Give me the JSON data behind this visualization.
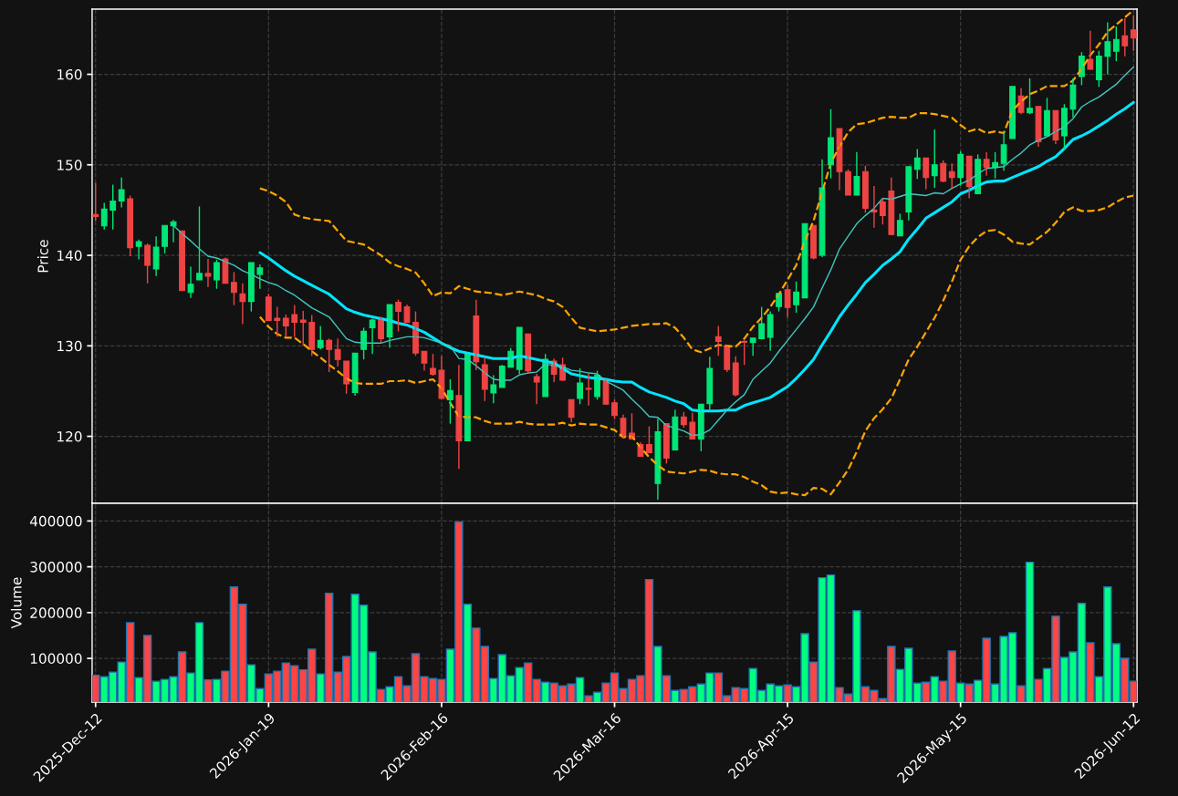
{
  "chart_data": [
    {
      "type": "candlestick",
      "ylabel": "Price",
      "grid": true,
      "tick_labels": "y",
      "ylim": [
        112.6,
        167.2
      ],
      "yticks": [
        120,
        130,
        140,
        150,
        160
      ],
      "categories": [
        null,
        null,
        null,
        null,
        null,
        null,
        null,
        null,
        null,
        null,
        null,
        null,
        null,
        null,
        null,
        null,
        null,
        null,
        null,
        null,
        null,
        null,
        null,
        null,
        null,
        null,
        null,
        null,
        null,
        null,
        null,
        null,
        null,
        null,
        null,
        null,
        null,
        null,
        null,
        null,
        null,
        null,
        null,
        null,
        null,
        null,
        null,
        null,
        null,
        null,
        null,
        null,
        null,
        null,
        null,
        null,
        null,
        null,
        null,
        null,
        null,
        null,
        null,
        null,
        null,
        null,
        null,
        null,
        null,
        null,
        null,
        null,
        null,
        null,
        null,
        null,
        null,
        null,
        null,
        null,
        null,
        null,
        null,
        null,
        null,
        null,
        null,
        null,
        null,
        null,
        null,
        null,
        null,
        null,
        null,
        null,
        null,
        null,
        null,
        null,
        null,
        null,
        null,
        null,
        null,
        null,
        null,
        null,
        null,
        null,
        null,
        null,
        null,
        null,
        null,
        null,
        null,
        null,
        null,
        null,
        null
      ],
      "ohlc": [
        [
          144.5,
          148.0,
          143.8,
          144.3
        ],
        [
          143.25,
          145.8,
          142.85,
          145.1
        ],
        [
          145.0,
          147.8,
          142.85,
          146.0
        ],
        [
          146.0,
          148.6,
          145.3,
          147.25
        ],
        [
          146.25,
          146.6,
          139.9,
          140.85
        ],
        [
          141.0,
          141.75,
          139.55,
          141.5
        ],
        [
          141.1,
          141.3,
          136.9,
          138.9
        ],
        [
          138.5,
          142.1,
          137.7,
          140.9
        ],
        [
          141.0,
          143.3,
          140.2,
          143.3
        ],
        [
          143.25,
          143.9,
          141.45,
          143.7
        ],
        [
          142.7,
          142.7,
          136.1,
          136.1
        ],
        [
          135.9,
          138.75,
          135.3,
          136.8
        ],
        [
          137.3,
          145.4,
          137.3,
          138.0
        ],
        [
          138.0,
          139.6,
          136.5,
          137.7
        ],
        [
          137.3,
          139.5,
          136.3,
          139.2
        ],
        [
          139.6,
          139.75,
          136.9,
          136.9
        ],
        [
          137.0,
          138.15,
          134.5,
          135.9
        ],
        [
          135.75,
          136.9,
          132.4,
          134.9
        ],
        [
          134.9,
          139.2,
          133.8,
          139.2
        ],
        [
          137.9,
          139.0,
          136.3,
          138.6
        ],
        [
          135.4,
          135.75,
          132.8,
          132.8
        ],
        [
          133.05,
          134.3,
          131.0,
          132.8
        ],
        [
          133.05,
          133.45,
          131.0,
          132.2
        ],
        [
          133.45,
          134.5,
          130.95,
          132.6
        ],
        [
          132.85,
          133.85,
          130.0,
          132.6
        ],
        [
          132.6,
          133.4,
          128.9,
          129.6
        ],
        [
          129.8,
          132.2,
          129.6,
          130.6
        ],
        [
          130.6,
          130.8,
          127.1,
          129.6
        ],
        [
          129.6,
          130.8,
          127.7,
          128.5
        ],
        [
          128.3,
          128.3,
          124.7,
          125.8
        ],
        [
          124.85,
          129.2,
          124.5,
          129.2
        ],
        [
          129.6,
          132.0,
          128.5,
          131.6
        ],
        [
          132.0,
          133.0,
          129.1,
          132.85
        ],
        [
          133.0,
          133.2,
          130.3,
          130.8
        ],
        [
          131.0,
          134.55,
          129.8,
          134.55
        ],
        [
          134.8,
          135.1,
          131.6,
          133.8
        ],
        [
          134.3,
          134.55,
          132.6,
          132.6
        ],
        [
          132.6,
          133.8,
          128.9,
          129.2
        ],
        [
          129.4,
          129.4,
          127.25,
          128.1
        ],
        [
          127.5,
          129.1,
          126.7,
          126.85
        ],
        [
          127.3,
          128.9,
          124.1,
          124.2
        ],
        [
          124.05,
          126.3,
          121.4,
          125.05
        ],
        [
          124.5,
          127.9,
          116.4,
          119.5
        ],
        [
          119.5,
          129.1,
          119.5,
          129.1
        ],
        [
          133.3,
          135.1,
          127.3,
          128.25
        ],
        [
          127.9,
          128.75,
          123.9,
          125.2
        ],
        [
          124.8,
          126.75,
          123.65,
          125.7
        ],
        [
          125.4,
          127.9,
          125.4,
          127.75
        ],
        [
          127.65,
          129.75,
          127.65,
          129.4
        ],
        [
          127.4,
          132.05,
          126.9,
          132.05
        ],
        [
          131.3,
          131.3,
          127.0,
          127.25
        ],
        [
          126.6,
          126.9,
          123.55,
          126.0
        ],
        [
          124.4,
          129.1,
          124.4,
          128.5
        ],
        [
          128.3,
          128.6,
          126.0,
          126.85
        ],
        [
          127.9,
          128.7,
          126.15,
          126.2
        ],
        [
          124.05,
          124.05,
          121.55,
          122.1
        ],
        [
          124.2,
          127.5,
          123.55,
          125.9
        ],
        [
          125.3,
          127.0,
          123.4,
          125.2
        ],
        [
          124.4,
          127.25,
          124.05,
          126.75
        ],
        [
          126.15,
          126.3,
          123.55,
          123.55
        ],
        [
          123.7,
          124.05,
          121.9,
          122.3
        ],
        [
          122.0,
          122.4,
          119.85,
          120.0
        ],
        [
          120.35,
          122.55,
          119.7,
          119.7
        ],
        [
          119.1,
          119.35,
          117.8,
          117.8
        ],
        [
          119.1,
          121.1,
          118.1,
          118.2
        ],
        [
          114.8,
          121.95,
          113.0,
          120.5
        ],
        [
          121.4,
          121.4,
          117.0,
          117.6
        ],
        [
          118.5,
          122.95,
          118.5,
          122.15
        ],
        [
          122.15,
          122.7,
          120.95,
          121.3
        ],
        [
          121.55,
          122.6,
          119.7,
          119.7
        ],
        [
          119.7,
          123.55,
          118.35,
          123.55
        ],
        [
          123.6,
          128.8,
          122.95,
          127.5
        ],
        [
          131.0,
          132.2,
          128.9,
          130.5
        ],
        [
          130.0,
          130.0,
          127.1,
          127.4
        ],
        [
          128.1,
          128.85,
          124.4,
          124.6
        ],
        [
          130.5,
          130.6,
          127.9,
          130.4
        ],
        [
          130.35,
          130.85,
          128.9,
          130.85
        ],
        [
          130.8,
          134.3,
          130.8,
          132.45
        ],
        [
          130.95,
          133.8,
          129.45,
          133.45
        ],
        [
          134.35,
          135.8,
          133.8,
          135.8
        ],
        [
          136.2,
          136.75,
          133.1,
          134.25
        ],
        [
          134.55,
          137.1,
          133.65,
          135.95
        ],
        [
          135.3,
          143.5,
          135.3,
          143.5
        ],
        [
          143.3,
          143.3,
          139.55,
          139.7
        ],
        [
          140.0,
          150.6,
          139.8,
          147.45
        ],
        [
          150.0,
          156.15,
          148.5,
          153.0
        ],
        [
          154.0,
          154.0,
          147.2,
          149.25
        ],
        [
          149.25,
          149.5,
          146.65,
          146.65
        ],
        [
          146.65,
          151.4,
          146.65,
          148.7
        ],
        [
          149.25,
          149.9,
          144.7,
          145.2
        ],
        [
          145.0,
          147.65,
          143.05,
          144.8
        ],
        [
          145.9,
          146.3,
          143.4,
          144.4
        ],
        [
          147.1,
          148.6,
          142.25,
          142.3
        ],
        [
          142.15,
          144.6,
          142.15,
          143.85
        ],
        [
          144.8,
          149.8,
          143.85,
          149.8
        ],
        [
          149.5,
          151.75,
          148.45,
          150.75
        ],
        [
          150.75,
          150.75,
          147.3,
          148.6
        ],
        [
          148.8,
          153.9,
          147.45,
          150.0
        ],
        [
          150.15,
          150.5,
          148.1,
          148.2
        ],
        [
          149.25,
          150.15,
          147.3,
          148.6
        ],
        [
          148.6,
          151.5,
          147.7,
          151.15
        ],
        [
          150.95,
          150.95,
          146.3,
          147.6
        ],
        [
          146.8,
          151.15,
          146.8,
          150.6
        ],
        [
          150.6,
          151.4,
          148.8,
          149.7
        ],
        [
          149.7,
          151.4,
          148.5,
          150.25
        ],
        [
          150.15,
          153.65,
          149.35,
          152.2
        ],
        [
          152.9,
          158.65,
          152.9,
          158.65
        ],
        [
          157.6,
          158.5,
          155.6,
          155.8
        ],
        [
          155.75,
          159.55,
          155.6,
          156.25
        ],
        [
          156.45,
          156.45,
          152.0,
          152.55
        ],
        [
          153.2,
          157.4,
          153.2,
          156.0
        ],
        [
          156.0,
          156.0,
          152.3,
          152.75
        ],
        [
          153.2,
          156.7,
          151.65,
          156.25
        ],
        [
          156.15,
          159.55,
          155.25,
          158.8
        ],
        [
          159.75,
          162.45,
          158.8,
          162.0
        ],
        [
          161.65,
          164.8,
          160.55,
          160.55
        ],
        [
          159.4,
          162.6,
          158.6,
          162.0
        ],
        [
          162.0,
          165.75,
          160.0,
          163.6
        ],
        [
          162.55,
          165.3,
          161.45,
          163.85
        ],
        [
          164.25,
          166.2,
          162.0,
          163.15
        ],
        [
          164.9,
          166.55,
          162.6,
          164.0
        ]
      ],
      "colors": [
        "#ef4444",
        "#00e676",
        "#00e676",
        "#00e676",
        "#ef4444",
        "#00e676",
        "#ef4444",
        "#00e676",
        "#00e676",
        "#00e676",
        "#ef4444",
        "#00e676",
        "#00e676",
        "#ef4444",
        "#00e676",
        "#ef4444",
        "#ef4444",
        "#ef4444",
        "#00e676",
        "#00e676",
        "#ef4444",
        "#ef4444",
        "#ef4444",
        "#ef4444",
        "#ef4444",
        "#ef4444",
        "#00e676",
        "#ef4444",
        "#ef4444",
        "#ef4444",
        "#00e676",
        "#00e676",
        "#00e676",
        "#ef4444",
        "#00e676",
        "#ef4444",
        "#ef4444",
        "#ef4444",
        "#ef4444",
        "#ef4444",
        "#ef4444",
        "#00e676",
        "#ef4444",
        "#00e676",
        "#ef4444",
        "#ef4444",
        "#00e676",
        "#00e676",
        "#00e676",
        "#00e676",
        "#ef4444",
        "#ef4444",
        "#00e676",
        "#ef4444",
        "#ef4444",
        "#ef4444",
        "#00e676",
        "#ef4444",
        "#00e676",
        "#ef4444",
        "#ef4444",
        "#ef4444",
        "#ef4444",
        "#ef4444",
        "#ef4444",
        "#00e676",
        "#ef4444",
        "#00e676",
        "#ef4444",
        "#ef4444",
        "#00e676",
        "#00e676",
        "#ef4444",
        "#ef4444",
        "#ef4444",
        "#ef4444",
        "#00e676",
        "#00e676",
        "#00e676",
        "#00e676",
        "#ef4444",
        "#00e676",
        "#00e676",
        "#ef4444",
        "#00e676",
        "#00e676",
        "#ef4444",
        "#ef4444",
        "#00e676",
        "#ef4444",
        "#ef4444",
        "#ef4444",
        "#ef4444",
        "#00e676",
        "#00e676",
        "#00e676",
        "#ef4444",
        "#00e676",
        "#ef4444",
        "#ef4444",
        "#00e676",
        "#ef4444",
        "#00e676",
        "#ef4444",
        "#00e676",
        "#00e676",
        "#00e676",
        "#ef4444",
        "#00e676",
        "#ef4444",
        "#00e676",
        "#ef4444",
        "#00e676",
        "#00e676",
        "#00e676",
        "#ef4444",
        "#00e676",
        "#00e676",
        "#00e676",
        "#ef4444",
        "#ef4444"
      ],
      "series": [
        {
          "type": "line",
          "color": "#00e5ff",
          "line_style": "solid",
          "values": [
            null,
            null,
            null,
            null,
            null,
            null,
            null,
            null,
            null,
            null,
            null,
            null,
            null,
            null,
            null,
            null,
            null,
            null,
            null,
            140.3,
            139.7,
            139.0,
            138.3,
            137.7,
            137.2,
            136.7,
            136.2,
            135.7,
            134.9,
            134.1,
            133.7,
            133.4,
            133.2,
            133.0,
            132.8,
            132.5,
            132.3,
            131.9,
            131.5,
            130.9,
            130.3,
            129.8,
            129.4,
            129.2,
            129.0,
            128.8,
            128.6,
            128.6,
            128.6,
            128.9,
            128.7,
            128.5,
            128.3,
            128.1,
            127.5,
            126.9,
            126.7,
            126.5,
            126.4,
            126.3,
            126.1,
            126.0,
            126.0,
            125.4,
            124.9,
            124.6,
            124.3,
            123.9,
            123.6,
            122.9,
            122.8,
            122.8,
            122.8,
            122.9,
            122.9,
            123.4,
            123.7,
            124.0,
            124.3,
            124.9,
            125.5,
            126.4,
            127.4,
            128.5,
            130.1,
            131.6,
            133.2,
            134.5,
            135.7,
            137.0,
            137.9,
            138.9,
            139.6,
            140.4,
            141.8,
            142.9,
            144.1,
            144.7,
            145.3,
            145.9,
            146.8,
            147.2,
            147.7,
            148.1,
            148.2,
            148.2,
            148.6,
            149.0,
            149.4,
            149.8,
            150.4,
            150.9,
            151.8,
            152.8,
            153.2,
            153.7,
            154.3,
            154.9,
            155.6,
            156.2,
            156.9
          ]
        },
        {
          "type": "line",
          "color": "#40c8c0",
          "line_style": "solid",
          "values": [
            null,
            null,
            null,
            null,
            null,
            null,
            null,
            null,
            null,
            143.3,
            142.4,
            141.6,
            140.7,
            139.9,
            139.7,
            139.3,
            138.9,
            138.3,
            137.9,
            137.4,
            137.0,
            136.7,
            136.1,
            135.6,
            134.9,
            134.2,
            133.7,
            133.2,
            132.0,
            130.8,
            130.4,
            130.3,
            130.3,
            130.3,
            130.6,
            130.8,
            131.0,
            131.0,
            130.9,
            130.6,
            130.3,
            130.0,
            128.6,
            128.5,
            127.8,
            127.0,
            126.3,
            126.2,
            126.2,
            126.8,
            127.0,
            127.1,
            128.0,
            127.8,
            127.7,
            127.3,
            127.2,
            127.0,
            126.9,
            126.1,
            125.6,
            125.1,
            124.1,
            123.2,
            122.2,
            122.1,
            121.2,
            120.9,
            120.6,
            120.1,
            120.2,
            120.7,
            121.8,
            122.9,
            123.8,
            124.6,
            126.3,
            127.2,
            128.1,
            129.4,
            130.6,
            131.8,
            133.0,
            134.3,
            136.4,
            138.4,
            140.7,
            142.1,
            143.5,
            144.4,
            145.2,
            146.3,
            146.2,
            146.5,
            146.8,
            146.7,
            146.6,
            146.9,
            146.8,
            147.4,
            147.9,
            148.3,
            149.0,
            149.6,
            149.7,
            149.8,
            150.6,
            151.3,
            152.2,
            152.7,
            153.1,
            153.7,
            154.2,
            155.1,
            156.4,
            157.0,
            157.5,
            158.2,
            158.9,
            159.9,
            160.8
          ]
        },
        {
          "type": "line",
          "color": "#ffa500",
          "line_style": "dashed",
          "values": [
            null,
            null,
            null,
            null,
            null,
            null,
            null,
            null,
            null,
            null,
            null,
            null,
            null,
            null,
            null,
            null,
            null,
            null,
            null,
            147.4,
            147.1,
            146.6,
            145.9,
            144.5,
            144.2,
            144.0,
            143.9,
            143.8,
            142.7,
            141.6,
            141.4,
            141.2,
            140.6,
            140.0,
            139.2,
            138.8,
            138.5,
            138.1,
            136.9,
            135.5,
            135.9,
            135.8,
            136.6,
            136.3,
            136.0,
            135.9,
            135.8,
            135.6,
            135.8,
            136.0,
            135.8,
            135.6,
            135.2,
            134.9,
            134.3,
            133.1,
            132.0,
            131.8,
            131.6,
            131.7,
            131.8,
            132.0,
            132.2,
            132.3,
            132.4,
            132.4,
            132.5,
            132.0,
            130.9,
            129.6,
            129.3,
            129.7,
            130.1,
            130.0,
            129.9,
            130.8,
            132.1,
            133.1,
            134.3,
            135.7,
            137.3,
            138.9,
            141.6,
            143.8,
            147.0,
            150.2,
            152.0,
            153.6,
            154.5,
            154.6,
            154.9,
            155.2,
            155.3,
            155.2,
            155.2,
            155.7,
            155.7,
            155.6,
            155.4,
            155.2,
            154.4,
            153.7,
            154.0,
            153.5,
            153.7,
            153.5,
            156.0,
            157.0,
            157.8,
            158.2,
            158.7,
            158.7,
            158.7,
            159.3,
            160.6,
            162.1,
            163.3,
            164.7,
            165.5,
            166.3,
            167.1
          ]
        },
        {
          "type": "line",
          "color": "#ffa500",
          "line_style": "dashed",
          "values": [
            null,
            null,
            null,
            null,
            null,
            null,
            null,
            null,
            null,
            null,
            null,
            null,
            null,
            null,
            null,
            null,
            null,
            null,
            null,
            133.2,
            132.1,
            131.3,
            130.9,
            130.9,
            130.2,
            129.4,
            128.7,
            127.9,
            127.2,
            126.4,
            125.9,
            125.8,
            125.8,
            125.8,
            126.1,
            126.1,
            126.2,
            125.9,
            126.1,
            126.3,
            125.3,
            123.7,
            122.2,
            122.1,
            122.1,
            121.7,
            121.4,
            121.4,
            121.4,
            121.6,
            121.4,
            121.3,
            121.3,
            121.3,
            121.5,
            121.2,
            121.4,
            121.3,
            121.3,
            121.0,
            120.7,
            119.9,
            120.0,
            118.8,
            117.7,
            116.8,
            116.1,
            116.0,
            115.9,
            116.1,
            116.3,
            116.2,
            115.9,
            115.8,
            115.8,
            115.5,
            115.0,
            114.6,
            113.9,
            113.7,
            113.8,
            113.6,
            113.5,
            114.3,
            114.2,
            113.6,
            114.9,
            116.3,
            118.3,
            120.6,
            122.0,
            123.0,
            124.2,
            126.3,
            128.5,
            129.9,
            131.5,
            133.1,
            135.0,
            137.1,
            139.5,
            141.0,
            142.0,
            142.7,
            142.8,
            142.3,
            141.5,
            141.3,
            141.2,
            141.9,
            142.6,
            143.6,
            144.8,
            145.3,
            144.9,
            144.9,
            145.0,
            145.3,
            145.9,
            146.4,
            146.6
          ]
        }
      ]
    },
    {
      "type": "bar",
      "ylabel": "Volume",
      "grid": true,
      "ylim": [
        4600,
        438600
      ],
      "yticks": [
        100000,
        200000,
        300000,
        400000
      ],
      "categories": [
        "2025-Dec-12",
        null,
        null,
        null,
        null,
        null,
        null,
        null,
        null,
        null,
        null,
        null,
        null,
        null,
        null,
        null,
        null,
        null,
        null,
        null,
        "2026-Jan-19",
        null,
        null,
        null,
        null,
        null,
        null,
        null,
        null,
        null,
        null,
        null,
        null,
        null,
        null,
        null,
        null,
        null,
        null,
        null,
        "2026-Feb-16",
        null,
        null,
        null,
        null,
        null,
        null,
        null,
        null,
        null,
        null,
        null,
        null,
        null,
        null,
        null,
        null,
        null,
        null,
        null,
        "2026-Mar-16",
        null,
        null,
        null,
        null,
        null,
        null,
        null,
        null,
        null,
        null,
        null,
        null,
        null,
        null,
        null,
        null,
        null,
        null,
        null,
        "2026-Apr-15",
        null,
        null,
        null,
        null,
        null,
        null,
        null,
        null,
        null,
        null,
        null,
        null,
        null,
        null,
        null,
        null,
        null,
        null,
        null,
        "2026-May-15",
        null,
        null,
        null,
        null,
        null,
        null,
        null,
        null,
        null,
        null,
        null,
        null,
        null,
        null,
        null,
        null,
        null,
        null,
        null,
        "2026-Jun-12"
      ],
      "values": [
        63000,
        60000,
        70000,
        92000,
        178000,
        58000,
        150000,
        50000,
        54000,
        60000,
        114000,
        68000,
        178000,
        53000,
        54000,
        72000,
        256000,
        218000,
        86000,
        34000,
        66000,
        72000,
        90000,
        84000,
        75000,
        120000,
        66000,
        242000,
        70000,
        104000,
        240000,
        216000,
        114000,
        32000,
        38000,
        60000,
        40000,
        110000,
        60000,
        56000,
        54000,
        120000,
        398000,
        218000,
        166000,
        126000,
        56000,
        108000,
        62000,
        80000,
        90000,
        54000,
        48000,
        46000,
        40000,
        44000,
        58000,
        18000,
        26000,
        46000,
        68000,
        34000,
        54000,
        62000,
        272000,
        126000,
        62000,
        30000,
        32000,
        38000,
        44000,
        68000,
        68000,
        18000,
        36000,
        34000,
        78000,
        30000,
        44000,
        40000,
        42000,
        38000,
        154000,
        92000,
        276000,
        282000,
        36000,
        22000,
        204000,
        38000,
        30000,
        12000,
        126000,
        76000,
        122000,
        46000,
        48000,
        60000,
        50000,
        116000,
        46000,
        44000,
        52000,
        144000,
        44000,
        148000,
        156000,
        40000,
        310000,
        54000,
        78000,
        192000,
        102000,
        114000,
        220000,
        134000,
        60000,
        256000,
        132000,
        100000,
        50000
      ],
      "colors": [
        "#ff4444",
        "#00ff7f",
        "#00ff7f",
        "#00ff7f",
        "#ff4444",
        "#00ff7f",
        "#ff4444",
        "#00ff7f",
        "#00ff7f",
        "#00ff7f",
        "#ff4444",
        "#00ff7f",
        "#00ff7f",
        "#ff4444",
        "#00ff7f",
        "#ff4444",
        "#ff4444",
        "#ff4444",
        "#00ff7f",
        "#00ff7f",
        "#ff4444",
        "#ff4444",
        "#ff4444",
        "#ff4444",
        "#ff4444",
        "#ff4444",
        "#00ff7f",
        "#ff4444",
        "#ff4444",
        "#ff4444",
        "#00ff7f",
        "#00ff7f",
        "#00ff7f",
        "#ff4444",
        "#00ff7f",
        "#ff4444",
        "#ff4444",
        "#ff4444",
        "#ff4444",
        "#ff4444",
        "#ff4444",
        "#00ff7f",
        "#ff4444",
        "#00ff7f",
        "#ff4444",
        "#ff4444",
        "#00ff7f",
        "#00ff7f",
        "#00ff7f",
        "#00ff7f",
        "#ff4444",
        "#ff4444",
        "#00ff7f",
        "#ff4444",
        "#ff4444",
        "#ff4444",
        "#00ff7f",
        "#ff4444",
        "#00ff7f",
        "#ff4444",
        "#ff4444",
        "#ff4444",
        "#ff4444",
        "#ff4444",
        "#ff4444",
        "#00ff7f",
        "#ff4444",
        "#00ff7f",
        "#ff4444",
        "#ff4444",
        "#00ff7f",
        "#00ff7f",
        "#ff4444",
        "#ff4444",
        "#ff4444",
        "#ff4444",
        "#00ff7f",
        "#00ff7f",
        "#00ff7f",
        "#00ff7f",
        "#ff4444",
        "#00ff7f",
        "#00ff7f",
        "#ff4444",
        "#00ff7f",
        "#00ff7f",
        "#ff4444",
        "#ff4444",
        "#00ff7f",
        "#ff4444",
        "#ff4444",
        "#ff4444",
        "#ff4444",
        "#00ff7f",
        "#00ff7f",
        "#00ff7f",
        "#ff4444",
        "#00ff7f",
        "#ff4444",
        "#ff4444",
        "#00ff7f",
        "#ff4444",
        "#00ff7f",
        "#ff4444",
        "#00ff7f",
        "#00ff7f",
        "#00ff7f",
        "#ff4444",
        "#00ff7f",
        "#ff4444",
        "#00ff7f",
        "#ff4444",
        "#00ff7f",
        "#00ff7f",
        "#00ff7f",
        "#ff4444",
        "#00ff7f",
        "#00ff7f",
        "#00ff7f",
        "#ff4444",
        "#ff4444"
      ]
    }
  ]
}
